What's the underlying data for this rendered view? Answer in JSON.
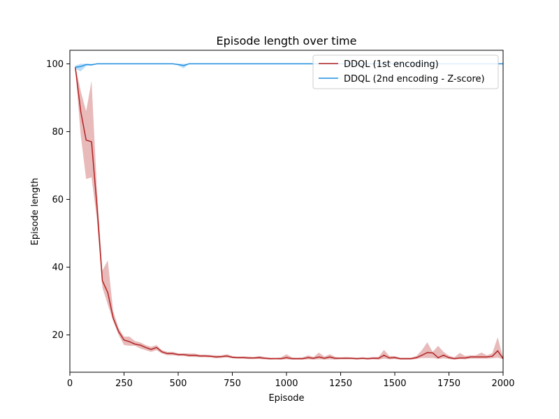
{
  "chart_data": {
    "type": "line",
    "title": "Episode length over time",
    "xlabel": "Episode",
    "ylabel": "Episode length",
    "xlim": [
      0,
      2000
    ],
    "ylim": [
      9,
      104
    ],
    "xticks": [
      0,
      250,
      500,
      750,
      1000,
      1250,
      1500,
      1750,
      2000
    ],
    "yticks": [
      20,
      40,
      60,
      80,
      100
    ],
    "grid": false,
    "legend": "top-right",
    "series": [
      {
        "name": "DDQL (1st encoding)",
        "color": "#b22222",
        "band_color": "#d98c8c",
        "x": [
          25,
          50,
          75,
          100,
          125,
          150,
          175,
          200,
          225,
          250,
          275,
          300,
          325,
          350,
          375,
          400,
          425,
          450,
          475,
          500,
          525,
          550,
          575,
          600,
          625,
          650,
          675,
          700,
          725,
          750,
          775,
          800,
          825,
          850,
          875,
          900,
          925,
          950,
          975,
          1000,
          1025,
          1050,
          1075,
          1100,
          1125,
          1150,
          1175,
          1200,
          1225,
          1250,
          1275,
          1300,
          1325,
          1350,
          1375,
          1400,
          1425,
          1450,
          1475,
          1500,
          1525,
          1550,
          1575,
          1600,
          1625,
          1650,
          1675,
          1700,
          1725,
          1750,
          1775,
          1800,
          1825,
          1850,
          1875,
          1900,
          1925,
          1950,
          1975,
          2000
        ],
        "y": [
          99,
          86,
          77.5,
          77,
          58,
          36,
          32.5,
          25,
          21,
          18.5,
          18,
          17.3,
          17,
          16.3,
          15.7,
          16.3,
          15,
          14.5,
          14.5,
          14.2,
          14.2,
          14,
          14,
          13.8,
          13.8,
          13.7,
          13.5,
          13.6,
          13.8,
          13.4,
          13.3,
          13.3,
          13.2,
          13.2,
          13.3,
          13.1,
          13,
          13,
          13,
          13.3,
          13,
          13,
          13,
          13.3,
          13.1,
          13.5,
          13.1,
          13.5,
          13.1,
          13.1,
          13.1,
          13.1,
          13,
          13.1,
          13,
          13.1,
          13.1,
          14,
          13.2,
          13.3,
          13,
          13,
          13,
          13.3,
          14,
          14.8,
          14.7,
          13.3,
          14,
          13.3,
          13,
          13.2,
          13.2,
          13.5,
          13.5,
          13.5,
          13.5,
          13.7,
          15.3,
          13
        ],
        "y_low": [
          98.5,
          79,
          66,
          66.5,
          54,
          34,
          29,
          24,
          20,
          17,
          16.8,
          16.8,
          16,
          15.5,
          15,
          15.5,
          14.5,
          14,
          14,
          13.8,
          13.8,
          13.5,
          13.5,
          13.4,
          13.4,
          13.3,
          13.1,
          13.2,
          13.3,
          13.1,
          13,
          13,
          12.9,
          12.9,
          12.9,
          12.8,
          12.7,
          12.8,
          12.7,
          12.8,
          12.7,
          12.7,
          12.7,
          12.8,
          12.7,
          12.8,
          12.7,
          12.8,
          12.7,
          12.8,
          12.8,
          12.8,
          12.7,
          12.8,
          12.7,
          12.8,
          12.7,
          13,
          12.8,
          12.9,
          12.7,
          12.7,
          12.7,
          12.9,
          13.2,
          13.2,
          13.2,
          12.9,
          13.1,
          12.9,
          12.7,
          12.9,
          12.8,
          13,
          13,
          13,
          13,
          13.1,
          13.3,
          12.8
        ],
        "y_high": [
          99.5,
          92,
          86,
          95,
          63,
          39,
          42,
          27,
          22,
          19.5,
          19.5,
          18.2,
          17.8,
          17,
          16.5,
          17,
          15.5,
          15,
          15,
          14.6,
          14.6,
          14.5,
          14.5,
          14.2,
          14.2,
          14.1,
          14,
          14,
          14.3,
          13.8,
          13.6,
          13.7,
          13.6,
          13.5,
          13.8,
          13.5,
          13.3,
          13.3,
          13.4,
          14.3,
          13.4,
          13.3,
          13.4,
          14,
          13.5,
          14.8,
          13.6,
          14.3,
          13.5,
          13.4,
          13.5,
          13.4,
          13.3,
          13.4,
          13.3,
          13.5,
          13.5,
          15.6,
          13.8,
          13.8,
          13.3,
          13.3,
          13.3,
          13.8,
          15.5,
          17.8,
          15,
          16.8,
          15,
          13.9,
          13.4,
          14.7,
          13.8,
          14,
          14,
          14.8,
          14,
          14.6,
          19.3,
          13.3
        ]
      },
      {
        "name": "DDQL (2nd encoding - Z-score)",
        "color": "#1f8fe0",
        "band_color": "#8cc8f5",
        "x": [
          25,
          50,
          75,
          100,
          125,
          150,
          200,
          300,
          400,
          475,
          500,
          525,
          550,
          575,
          600,
          700,
          800,
          900,
          1000,
          1100,
          1200,
          1300,
          1400,
          1500,
          1600,
          1700,
          1800,
          1900,
          2000
        ],
        "y": [
          99,
          99.2,
          99.8,
          99.7,
          100,
          100,
          100,
          100,
          100,
          100,
          99.8,
          99.5,
          100,
          100,
          100,
          100,
          100,
          100,
          100,
          100,
          100,
          100,
          100,
          100,
          100,
          100,
          100,
          100,
          100
        ],
        "y_low": [
          98.5,
          97.8,
          99.4,
          99.5,
          100,
          100,
          100,
          100,
          100,
          100,
          99.5,
          98.7,
          100,
          100,
          100,
          100,
          100,
          100,
          100,
          100,
          100,
          100,
          100,
          100,
          100,
          100,
          100,
          100,
          100
        ],
        "y_high": [
          99.5,
          100,
          100,
          100,
          100,
          100,
          100,
          100,
          100,
          100,
          100,
          100,
          100,
          100,
          100,
          100,
          100,
          100,
          100,
          100,
          100,
          100,
          100,
          100,
          100,
          100,
          100,
          100,
          100
        ]
      }
    ]
  }
}
